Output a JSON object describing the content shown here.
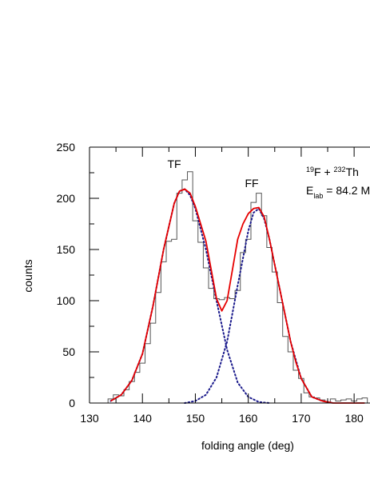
{
  "chart_data": {
    "type": "line",
    "xlabel": "folding angle (deg)",
    "ylabel": "counts",
    "xlim": [
      130,
      183
    ],
    "ylim": [
      0,
      250
    ],
    "x_ticks": [
      130,
      140,
      150,
      160,
      170,
      180
    ],
    "y_ticks": [
      0,
      50,
      100,
      150,
      200,
      250
    ],
    "annotations": {
      "tf": "TF",
      "ff": "FF",
      "reaction": {
        "m1": "19",
        "e1": "F + ",
        "m2": "232",
        "e2": "Th"
      },
      "energy": {
        "base": "E",
        "sub": "lab",
        "rest": " = 84.2 M"
      }
    },
    "series": [
      {
        "kind": "histogram",
        "color": "#555555",
        "bin_width": 1,
        "x": [
          134,
          135,
          136,
          137,
          138,
          139,
          140,
          141,
          142,
          143,
          144,
          145,
          146,
          147,
          148,
          149,
          150,
          151,
          152,
          153,
          154,
          155,
          156,
          157,
          158,
          159,
          160,
          161,
          162,
          163,
          164,
          165,
          166,
          167,
          168,
          169,
          170,
          171,
          172,
          173,
          174,
          175,
          176,
          177,
          178,
          179,
          180,
          181,
          182
        ],
        "values": [
          4,
          8,
          7,
          13,
          21,
          30,
          39,
          58,
          78,
          108,
          138,
          158,
          160,
          205,
          218,
          226,
          178,
          157,
          132,
          112,
          102,
          101,
          103,
          102,
          110,
          147,
          160,
          196,
          205,
          183,
          152,
          128,
          98,
          65,
          50,
          32,
          24,
          10,
          6,
          5,
          3,
          1,
          4,
          2,
          3,
          4,
          2,
          4,
          5
        ]
      },
      {
        "kind": "component",
        "color": "#1a1a8c",
        "style": "dotted",
        "x": [
          134,
          136,
          138,
          140,
          142,
          144,
          146,
          147,
          148,
          149,
          150,
          152,
          154,
          156,
          158,
          160,
          162,
          164
        ],
        "values": [
          2,
          8,
          22,
          48,
          95,
          150,
          195,
          207,
          209,
          203,
          190,
          150,
          100,
          52,
          20,
          6,
          1,
          0
        ]
      },
      {
        "kind": "component",
        "color": "#1a1a8c",
        "style": "dotted",
        "x": [
          148,
          150,
          152,
          154,
          156,
          158,
          160,
          161,
          162,
          163,
          164,
          166,
          168,
          170,
          172,
          174,
          176
        ],
        "values": [
          0,
          2,
          8,
          25,
          60,
          115,
          168,
          186,
          190,
          180,
          160,
          110,
          60,
          24,
          6,
          2,
          0
        ]
      },
      {
        "kind": "fit",
        "color": "#e60000",
        "x": [
          134,
          136,
          138,
          140,
          142,
          144,
          146,
          147,
          148,
          149,
          150,
          151,
          152,
          153,
          154,
          155,
          156,
          157,
          158,
          159,
          160,
          161,
          162,
          163,
          164,
          165,
          166,
          167,
          168,
          169,
          170,
          172,
          174,
          176,
          178,
          180,
          182
        ],
        "values": [
          2,
          8,
          22,
          48,
          95,
          150,
          195,
          207,
          209,
          205,
          192,
          175,
          158,
          130,
          102,
          90,
          100,
          130,
          160,
          175,
          185,
          190,
          191,
          182,
          160,
          135,
          110,
          85,
          60,
          40,
          24,
          6,
          2,
          0,
          0,
          0,
          0
        ]
      }
    ]
  }
}
